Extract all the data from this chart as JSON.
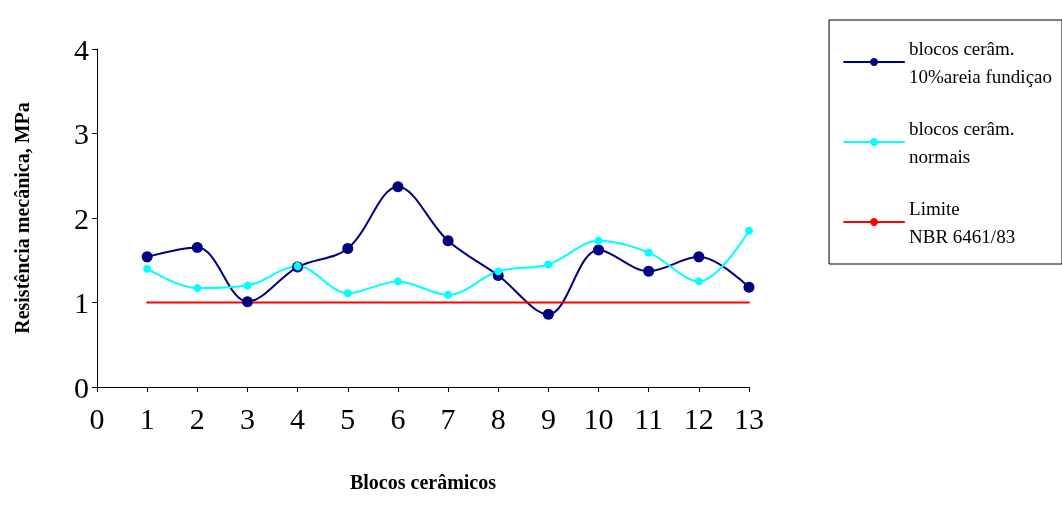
{
  "chart_data": {
    "type": "line",
    "xlabel": "Blocos cerâmicos",
    "ylabel": "Resistência mecânica, MPa",
    "x": [
      1,
      2,
      3,
      4,
      5,
      6,
      7,
      8,
      9,
      10,
      11,
      12,
      13
    ],
    "xlim": [
      0,
      13
    ],
    "xticks": [
      0,
      1,
      2,
      3,
      4,
      5,
      6,
      7,
      8,
      9,
      10,
      11,
      12,
      13
    ],
    "ylim": [
      0,
      4
    ],
    "yticks": [
      0,
      1,
      2,
      3,
      4
    ],
    "grid": false,
    "legend": "right",
    "marker": "circle",
    "line_style": "solid",
    "series": [
      {
        "name": "blocos cerâm.\n10%areia fundiçao",
        "color": "#000080",
        "values": [
          1.54,
          1.65,
          1.01,
          1.42,
          1.64,
          2.37,
          1.73,
          1.32,
          0.86,
          1.62,
          1.37,
          1.54,
          1.18
        ]
      },
      {
        "name": "blocos cerâm.\nnormais",
        "color": "#00ffff",
        "values": [
          1.4,
          1.17,
          1.2,
          1.43,
          1.11,
          1.25,
          1.09,
          1.37,
          1.45,
          1.73,
          1.59,
          1.25,
          1.85
        ]
      },
      {
        "name": "Limite\nNBR 6461/83",
        "color": "#ff0000",
        "x": [
          1,
          13
        ],
        "values": [
          1,
          1
        ],
        "marker": "none"
      }
    ]
  }
}
